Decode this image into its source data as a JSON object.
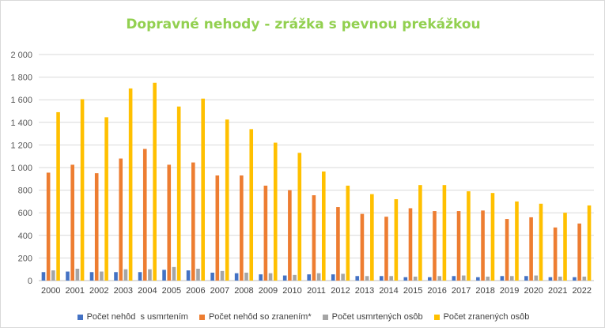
{
  "chart_data": {
    "type": "bar",
    "title": "Dopravné nehody - zrážka s pevnou prekážkou",
    "title_color": "#92D050",
    "categories": [
      "2000",
      "2001",
      "2002",
      "2003",
      "2004",
      "2005",
      "2006",
      "2007",
      "2008",
      "2009",
      "2010",
      "2011",
      "2012",
      "2013",
      "2014",
      "2015",
      "2016",
      "2017",
      "2018",
      "2019",
      "2020",
      "2021",
      "2022"
    ],
    "ylim": [
      0,
      2000
    ],
    "yticks": [
      0,
      200,
      400,
      600,
      800,
      1000,
      1200,
      1400,
      1600,
      1800,
      2000
    ],
    "ytick_labels": [
      "0",
      "200",
      "400",
      "600",
      "800",
      "1 000",
      "1 200",
      "1 400",
      "1 600",
      "1 800",
      "2 000"
    ],
    "grid": true,
    "legend_position": "bottom",
    "series": [
      {
        "name": "Počet nehôd  s usmrtením",
        "color": "#4472C4",
        "values": [
          75,
          80,
          75,
          75,
          75,
          95,
          90,
          70,
          65,
          55,
          45,
          55,
          55,
          40,
          40,
          30,
          30,
          40,
          30,
          40,
          40,
          30,
          30
        ]
      },
      {
        "name": "Počet nehôd so zranením*",
        "color": "#ED7D31",
        "values": [
          955,
          1025,
          950,
          1080,
          1165,
          1025,
          1045,
          930,
          930,
          840,
          800,
          755,
          650,
          590,
          565,
          640,
          615,
          615,
          620,
          545,
          560,
          470,
          505
        ]
      },
      {
        "name": "Počet usmrtených osôb",
        "color": "#A5A5A5",
        "values": [
          90,
          105,
          80,
          100,
          100,
          120,
          105,
          85,
          70,
          65,
          50,
          65,
          60,
          40,
          40,
          35,
          40,
          45,
          35,
          40,
          45,
          35,
          35
        ]
      },
      {
        "name": "Počet zranených osôb",
        "color": "#FFC000",
        "values": [
          1490,
          1605,
          1445,
          1700,
          1750,
          1540,
          1610,
          1425,
          1340,
          1220,
          1130,
          965,
          840,
          765,
          720,
          845,
          845,
          790,
          775,
          700,
          680,
          600,
          665
        ]
      }
    ]
  }
}
